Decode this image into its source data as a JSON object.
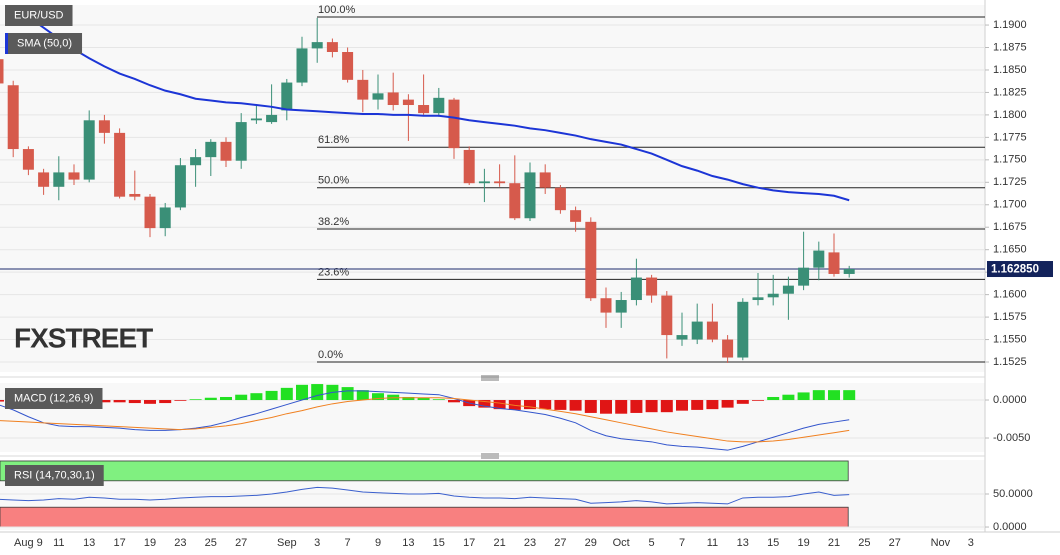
{
  "chart_data": [
    {
      "type": "candlestick",
      "categories": [
        null,
        null,
        "Aug 9",
        null,
        "11",
        null,
        "13",
        null,
        "17",
        null,
        "19",
        null,
        "23",
        null,
        "25",
        null,
        "27",
        null,
        null,
        "Sep",
        null,
        "3",
        null,
        "7",
        null,
        "9",
        null,
        "13",
        null,
        "15",
        null,
        "17",
        null,
        "21",
        null,
        "23",
        null,
        "27",
        null,
        "29",
        null,
        "Oct",
        null,
        "5",
        null,
        "7",
        null,
        "11",
        null,
        "13",
        null,
        "15",
        null,
        "19",
        null,
        "21",
        null,
        "25",
        null,
        "27",
        null,
        null,
        "Nov",
        null,
        "3"
      ],
      "series": [
        {
          "name": "EUR/USD",
          "up_color": "#3a8f77",
          "down_color": "#d65a4c",
          "open": [
            1.1862,
            1.1833,
            1.1762,
            1.1736,
            1.172,
            1.1736,
            1.1728,
            1.1794,
            1.178,
            1.1712,
            1.1709,
            1.1674,
            1.1697,
            1.1744,
            1.1753,
            1.177,
            1.1749,
            1.1794,
            1.1792,
            1.1805,
            1.1836,
            1.1874,
            1.1881,
            1.187,
            1.1839,
            1.1817,
            1.1825,
            1.1817,
            1.1811,
            1.1802,
            1.1817,
            1.1761,
            1.1724,
            1.1726,
            1.1724,
            1.1685,
            1.1736,
            1.1719,
            1.1694,
            1.1681,
            1.1596,
            1.158,
            1.1594,
            1.1619,
            1.1599,
            1.155,
            1.155,
            1.157,
            1.155,
            1.153,
            1.1594,
            1.1597,
            1.1601,
            1.161,
            1.163,
            1.1647,
            1.1623,
            null,
            null,
            null,
            null,
            null,
            null,
            null,
            null
          ],
          "high": [
            1.1865,
            1.1838,
            1.1765,
            1.174,
            1.1754,
            1.1745,
            1.1805,
            1.18,
            1.1785,
            1.1738,
            1.1712,
            1.1702,
            1.1752,
            1.1762,
            1.1773,
            1.1775,
            1.1802,
            1.181,
            1.1834,
            1.184,
            1.1887,
            1.1908,
            1.1885,
            1.1875,
            1.185,
            1.1845,
            1.1847,
            1.1823,
            1.1845,
            1.183,
            1.1819,
            1.1765,
            1.174,
            1.1745,
            1.1755,
            1.1747,
            1.1745,
            1.1722,
            1.1698,
            1.1686,
            1.1608,
            1.1603,
            1.164,
            1.1622,
            1.1604,
            1.158,
            1.159,
            1.159,
            1.1555,
            1.1596,
            1.1624,
            1.1622,
            1.162,
            1.167,
            1.1659,
            1.1668,
            1.1632,
            null,
            null,
            null,
            null,
            null,
            null,
            null,
            null
          ],
          "low": [
            1.183,
            1.1753,
            1.1733,
            1.1711,
            1.1705,
            1.1722,
            1.1725,
            1.1768,
            1.1707,
            1.1705,
            1.1664,
            1.1665,
            1.1694,
            1.172,
            1.1732,
            1.1742,
            1.174,
            1.179,
            1.179,
            1.1794,
            1.1832,
            1.1858,
            1.1864,
            1.1836,
            1.1803,
            1.1806,
            1.1805,
            1.1771,
            1.18,
            1.1798,
            1.1751,
            1.1722,
            1.1703,
            1.172,
            1.1683,
            1.1682,
            1.1712,
            1.169,
            1.167,
            1.1593,
            1.1563,
            1.1563,
            1.1588,
            1.1591,
            1.1529,
            1.1543,
            1.1545,
            1.1547,
            1.1524,
            1.1527,
            1.1588,
            1.1588,
            1.1572,
            1.1605,
            1.1616,
            1.162,
            1.1619,
            null,
            null,
            null,
            null,
            null,
            null,
            null,
            null
          ],
          "close": [
            1.1835,
            1.1762,
            1.1739,
            1.172,
            1.1736,
            1.1728,
            1.1794,
            1.178,
            1.1709,
            1.1709,
            1.1674,
            1.1697,
            1.1744,
            1.1753,
            1.177,
            1.1749,
            1.1792,
            1.1796,
            1.18,
            1.1836,
            1.1874,
            1.1881,
            1.187,
            1.1839,
            1.1817,
            1.1824,
            1.1811,
            1.1811,
            1.1802,
            1.1819,
            1.1763,
            1.1724,
            1.1726,
            1.1724,
            1.1685,
            1.1736,
            1.1719,
            1.1694,
            1.1681,
            1.1596,
            1.158,
            1.1594,
            1.1619,
            1.1599,
            1.1555,
            1.1555,
            1.157,
            1.155,
            1.153,
            1.1592,
            1.1597,
            1.1601,
            1.161,
            1.163,
            1.1649,
            1.1623,
            1.16285,
            null,
            null,
            null,
            null,
            null,
            null,
            null,
            null
          ]
        },
        {
          "name": "SMA (50,0)",
          "color": "#1c35d6",
          "values": [
            1.193,
            1.192,
            1.1909,
            1.1897,
            1.1885,
            1.1873,
            1.1863,
            1.1854,
            1.1846,
            1.184,
            1.1833,
            1.1827,
            1.1823,
            1.1818,
            1.1816,
            1.1814,
            1.1813,
            1.1811,
            1.1809,
            1.1806,
            1.1805,
            1.1804,
            1.1803,
            1.1802,
            1.1801,
            1.1801,
            1.18,
            1.18,
            1.1799,
            1.1799,
            1.1797,
            1.1794,
            1.1792,
            1.179,
            1.1788,
            1.1785,
            1.1783,
            1.178,
            1.1777,
            1.1773,
            1.177,
            1.1767,
            1.1762,
            1.1757,
            1.175,
            1.1743,
            1.1738,
            1.1732,
            1.1728,
            1.1723,
            1.1719,
            1.1716,
            1.1714,
            1.1713,
            1.1712,
            1.171,
            1.1705,
            null,
            null,
            null,
            null,
            null,
            null,
            null,
            null
          ]
        }
      ],
      "ylim": [
        1.15139,
        1.19223
      ],
      "yticks": [
        1.1525,
        {
          "value": 1.155,
          "label": "1.1550"
        },
        1.1575,
        {
          "value": 1.16,
          "label": "1.1600"
        },
        1.1625,
        {
          "value": 1.165,
          "label": "1.1650"
        },
        1.1675,
        {
          "value": 1.17,
          "label": "1.1700"
        },
        1.1725,
        {
          "value": 1.175,
          "label": "1.1750"
        },
        1.1775,
        {
          "value": 1.18,
          "label": "1.1800"
        },
        1.1825,
        {
          "value": 1.185,
          "label": "1.1850"
        },
        1.1875,
        {
          "value": 1.19,
          "label": "1.1900"
        }
      ],
      "grid": true,
      "fib_levels": [
        {
          "label": "100.0%",
          "value": 1.1909
        },
        {
          "label": "61.8%",
          "value": 1.1764
        },
        {
          "label": "50.0%",
          "value": 1.1719
        },
        {
          "label": "38.2%",
          "value": 1.1673
        },
        {
          "label": "23.6%",
          "value": 1.1617
        },
        {
          "label": "0.0%",
          "value": 1.1525
        }
      ],
      "last_price": {
        "value": 1.16285,
        "label": "1.162850"
      },
      "watermark": "FXSTREET"
    },
    {
      "type": "macd",
      "title": "MACD (12,26,9)",
      "histogram": {
        "up_color": "#22e022",
        "down_color": "#e01515",
        "values": [
          -0.0002,
          -0.0002,
          -0.0003,
          -0.0003,
          -0.0003,
          -0.0003,
          -0.0003,
          -0.0003,
          -0.0003,
          -0.0004,
          -0.0005,
          -0.0004,
          -0.0001,
          0.0001,
          0.0003,
          0.0004,
          0.0007,
          0.0009,
          0.0012,
          0.0016,
          0.002,
          0.0021,
          0.002,
          0.0017,
          0.0013,
          0.0009,
          0.0007,
          0.0004,
          0.0003,
          0.0001,
          -0.0003,
          -0.0008,
          -0.001,
          -0.0012,
          -0.0013,
          -0.0012,
          -0.0012,
          -0.0013,
          -0.0014,
          -0.0017,
          -0.0018,
          -0.0018,
          -0.0017,
          -0.0016,
          -0.0016,
          -0.0014,
          -0.0013,
          -0.0012,
          -0.001,
          -0.0005,
          -0.0001,
          0.0004,
          0.0007,
          0.001,
          0.0013,
          0.0013,
          0.0013,
          null,
          null,
          null,
          null,
          null,
          null,
          null,
          null
        ]
      },
      "series": [
        {
          "color": "#3355cc",
          "values": [
            -0.0006,
            -0.0013,
            -0.0022,
            -0.003,
            -0.0034,
            -0.0035,
            -0.0035,
            -0.0036,
            -0.0037,
            -0.0039,
            -0.004,
            -0.004,
            -0.0039,
            -0.0037,
            -0.0034,
            -0.0029,
            -0.0023,
            -0.0018,
            -0.0012,
            -0.0006,
            0.0,
            0.0006,
            0.001,
            0.0012,
            0.0012,
            0.0011,
            0.001,
            0.0009,
            0.0008,
            0.0007,
            0.0002,
            -0.0004,
            -0.0008,
            -0.0011,
            -0.0013,
            -0.0016,
            -0.0019,
            -0.0024,
            -0.003,
            -0.004,
            -0.0047,
            -0.0051,
            -0.0053,
            -0.0055,
            -0.0059,
            -0.0061,
            -0.0062,
            -0.0064,
            -0.0066,
            -0.0061,
            -0.0055,
            -0.0049,
            -0.0043,
            -0.0037,
            -0.0032,
            -0.0029,
            -0.0026,
            null,
            null,
            null,
            null,
            null,
            null,
            null,
            null
          ]
        },
        {
          "color": "#f08020",
          "values": [
            -0.0027,
            -0.0028,
            -0.0029,
            -0.003,
            -0.0031,
            -0.0032,
            -0.0033,
            -0.0034,
            -0.0035,
            -0.0036,
            -0.0037,
            -0.0038,
            -0.0039,
            -0.0038,
            -0.0036,
            -0.0034,
            -0.0031,
            -0.0027,
            -0.0023,
            -0.0018,
            -0.0014,
            -0.0009,
            -0.0005,
            -0.0002,
            0.0,
            0.0002,
            0.0003,
            0.0003,
            0.0003,
            0.0003,
            0.0002,
            0.0,
            -0.0002,
            -0.0004,
            -0.0007,
            -0.0009,
            -0.0012,
            -0.0015,
            -0.0018,
            -0.0022,
            -0.0026,
            -0.003,
            -0.0034,
            -0.0038,
            -0.0042,
            -0.0045,
            -0.0048,
            -0.0051,
            -0.0054,
            -0.0055,
            -0.0055,
            -0.0054,
            -0.0052,
            -0.0049,
            -0.0046,
            -0.0043,
            -0.004,
            null,
            null,
            null,
            null,
            null,
            null,
            null,
            null
          ]
        }
      ],
      "ylim": [
        -0.00684,
        0.00224
      ],
      "yticks": [
        {
          "value": 0,
          "label": "0.0000"
        },
        {
          "value": -0.005,
          "label": "-0.0050"
        }
      ],
      "grid": true
    },
    {
      "type": "rsi",
      "title": "RSI (14,70,30,1)",
      "bands": [
        {
          "from": 70,
          "to": 100,
          "color": "#80f080"
        },
        {
          "from": 0,
          "to": 30,
          "color": "#f88080"
        }
      ],
      "series": [
        {
          "color": "#3a5fcd",
          "values": [
            42,
            41,
            40,
            41,
            43,
            42,
            45,
            44,
            42,
            42,
            41,
            42,
            44,
            45,
            46,
            46,
            47,
            48,
            50,
            53,
            57,
            60,
            59,
            56,
            53,
            52,
            51,
            50,
            50,
            51,
            47,
            45,
            44,
            44,
            43,
            45,
            44,
            43,
            42,
            36,
            37,
            38,
            40,
            38,
            35,
            36,
            37,
            36,
            35,
            44,
            45,
            45,
            46,
            50,
            53,
            48,
            49,
            null,
            null,
            null,
            null,
            null,
            null,
            null,
            null
          ]
        }
      ],
      "ylim": [
        -4.5,
        101.5
      ],
      "yticks": [
        {
          "value": 0,
          "label": "0.0000"
        },
        {
          "value": 50,
          "label": "50.0000"
        }
      ],
      "grid": true
    }
  ]
}
